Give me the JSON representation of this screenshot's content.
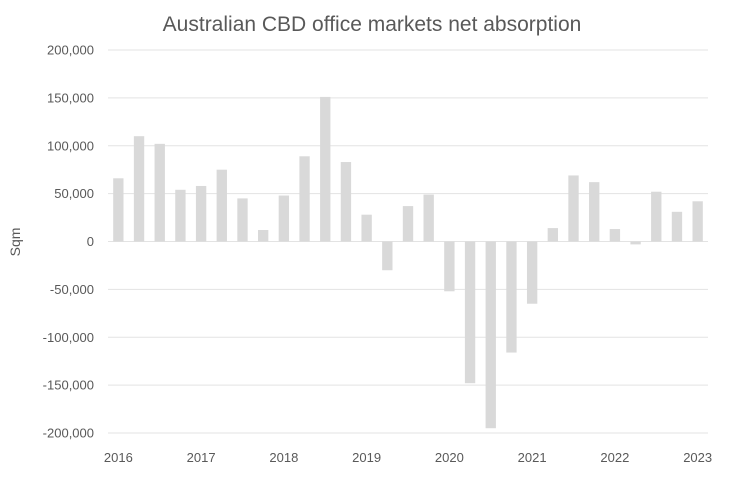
{
  "chart_data": {
    "type": "bar",
    "title": "Australian CBD office markets net absorption",
    "xlabel": "",
    "ylabel": "Sqm",
    "ylim": [
      -200000,
      200000
    ],
    "y_ticks": [
      "200,000",
      "150,000",
      "100,000",
      "50,000",
      "0",
      "-50,000",
      "-100,000",
      "-150,000",
      "-200,000"
    ],
    "y_tick_values": [
      200000,
      150000,
      100000,
      50000,
      0,
      -50000,
      -100000,
      -150000,
      -200000
    ],
    "x_tick_labels": [
      "2016",
      "2017",
      "2018",
      "2019",
      "2020",
      "2021",
      "2022",
      "2023"
    ],
    "grid": true,
    "legend": "none",
    "bar_color": "#d9d9d9",
    "categories": [
      "2016-Q1",
      "2016-Q2",
      "2016-Q3",
      "2016-Q4",
      "2017-Q1",
      "2017-Q2",
      "2017-Q3",
      "2017-Q4",
      "2018-Q1",
      "2018-Q2",
      "2018-Q3",
      "2018-Q4",
      "2019-Q1",
      "2019-Q2",
      "2019-Q3",
      "2019-Q4",
      "2020-Q1",
      "2020-Q2",
      "2020-Q3",
      "2020-Q4",
      "2021-Q1",
      "2021-Q2",
      "2021-Q3",
      "2021-Q4",
      "2022-Q1",
      "2022-Q2",
      "2022-Q3",
      "2022-Q4",
      "2023-Q1"
    ],
    "values": [
      66000,
      110000,
      102000,
      54000,
      58000,
      75000,
      45000,
      12000,
      48000,
      89000,
      151000,
      83000,
      28000,
      -30000,
      37000,
      49000,
      -52000,
      -148000,
      -195000,
      -116000,
      -65000,
      14000,
      69000,
      62000,
      13000,
      -3000,
      52000,
      31000,
      42000
    ]
  }
}
